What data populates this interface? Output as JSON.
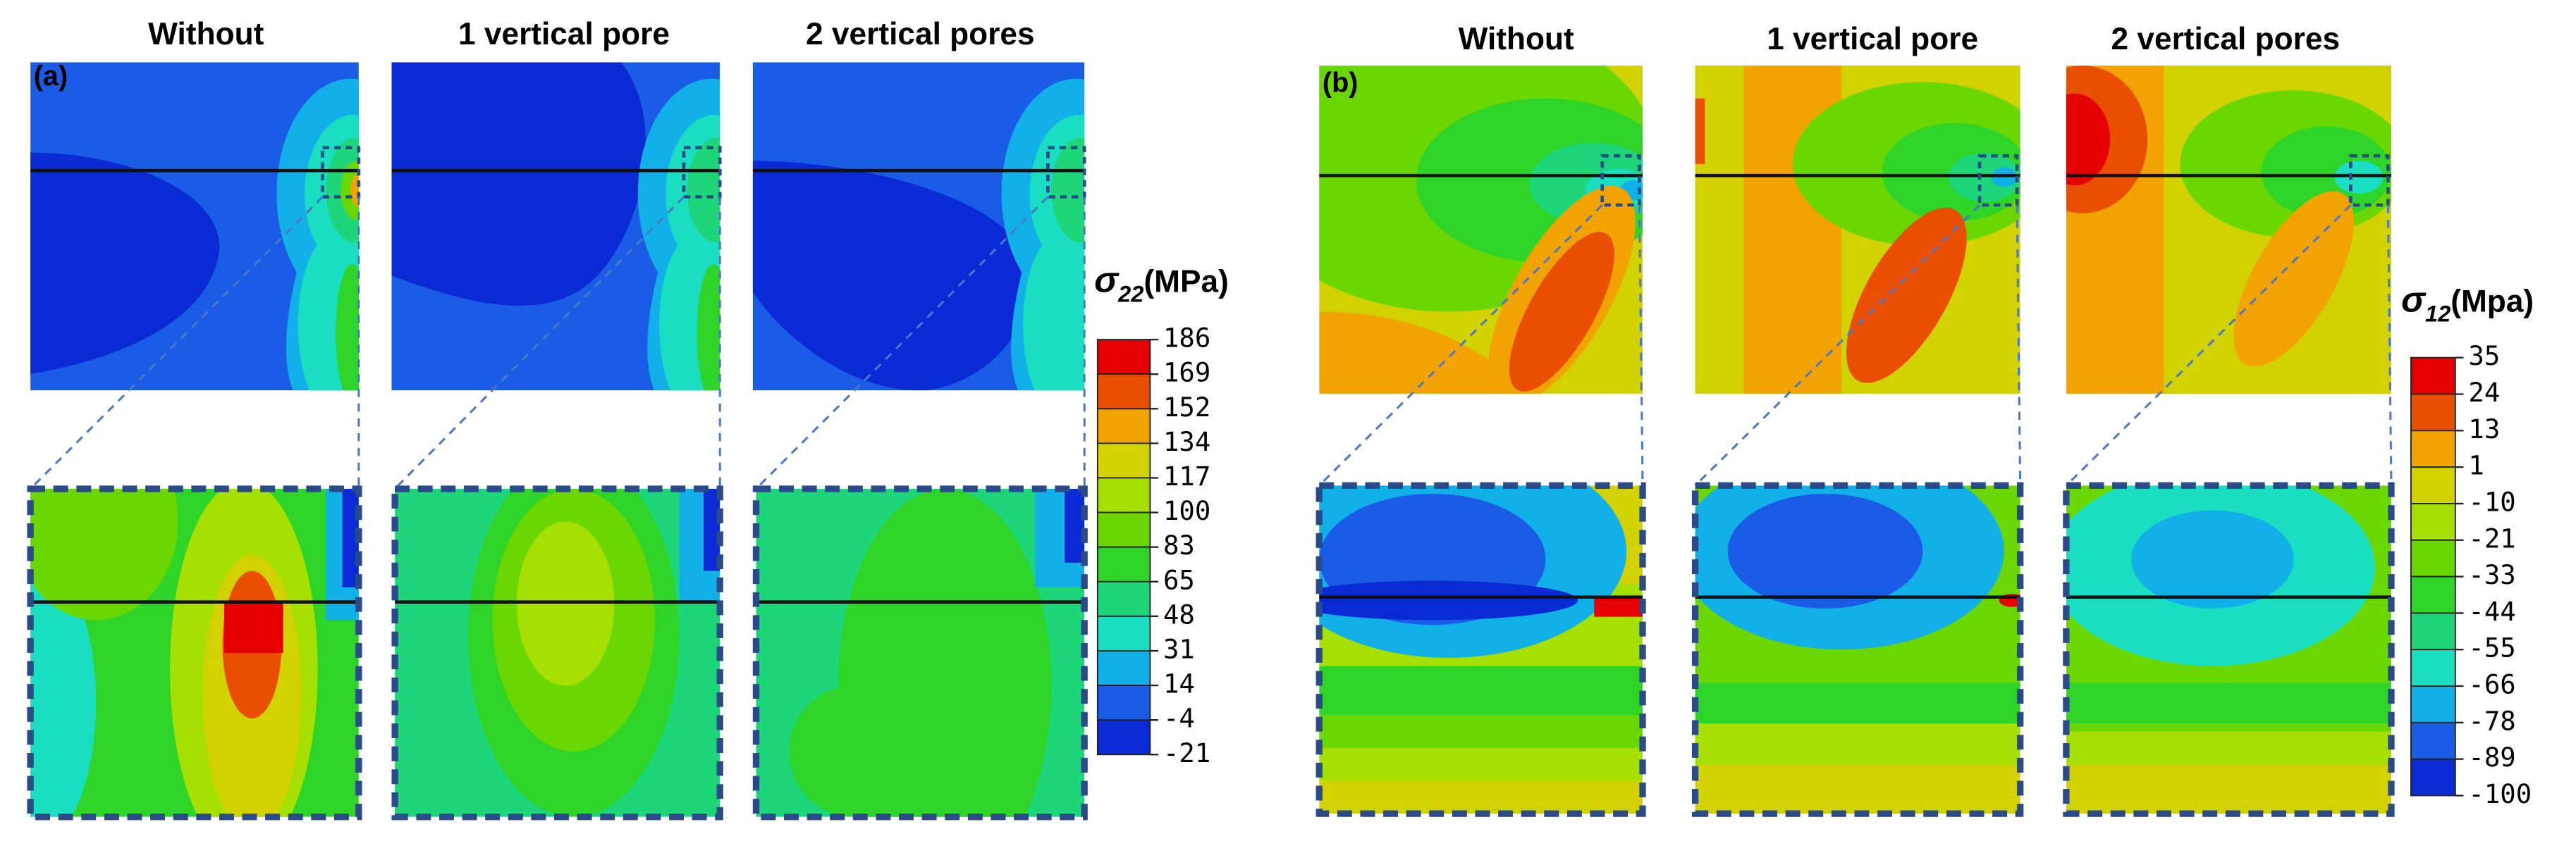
{
  "panels": [
    {
      "label": "(a)",
      "titles": [
        "Without",
        "1 vertical pore",
        "2 vertical pores"
      ],
      "colorbar": {
        "symbol": "σ",
        "subscript": "22",
        "unit": "(MPa)",
        "levels": [
          186,
          169,
          152,
          134,
          117,
          100,
          83,
          65,
          48,
          31,
          14,
          -4,
          -21
        ]
      }
    },
    {
      "label": "(b)",
      "titles": [
        "Without",
        "1 vertical pore",
        "2 vertical pores"
      ],
      "colorbar": {
        "symbol": "σ",
        "subscript": "12",
        "unit": "(Mpa)",
        "levels": [
          35,
          24,
          13,
          1,
          -10,
          -21,
          -33,
          -44,
          -55,
          -66,
          -78,
          -89,
          -100
        ]
      }
    }
  ]
}
